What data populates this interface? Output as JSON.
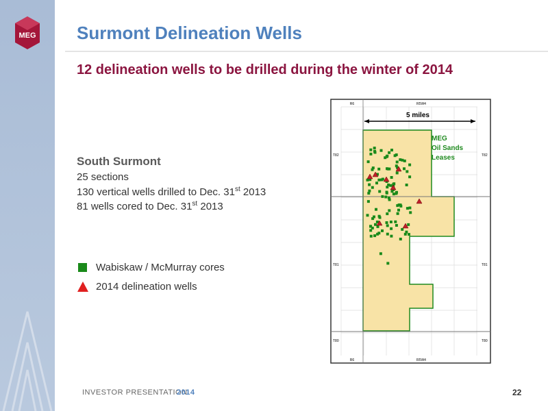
{
  "header": {
    "title": "Surmont Delineation Wells",
    "subtitle": "12 delineation wells to be drilled during the winter of 2014"
  },
  "body": {
    "heading": "South Surmont",
    "lines": [
      {
        "text": "25 sections"
      },
      {
        "text": "130 vertical wells drilled to Dec. 31",
        "sup": "st",
        "after": " 2013"
      },
      {
        "text": "81 wells cored to Dec. 31",
        "sup": "st",
        "after": " 2013"
      }
    ]
  },
  "legend": [
    {
      "label": "Wabiskaw / McMurray cores",
      "color": "#1a8a1a"
    },
    {
      "label": "2014 delineation wells",
      "color": "#e02020"
    }
  ],
  "map": {
    "scale": "5 miles",
    "lease_label": [
      "MEG",
      "Oil Sands",
      "Leases"
    ],
    "top": [
      "R6",
      "R5W4"
    ],
    "bottom": [
      "R6",
      "R5W4"
    ],
    "left": [
      "T82",
      "T81",
      "T80"
    ],
    "right": [
      "T82",
      "T81",
      "T80"
    ]
  },
  "footer": {
    "label": "INVESTOR PRESENTATION",
    "year": "2014",
    "page": "22"
  }
}
